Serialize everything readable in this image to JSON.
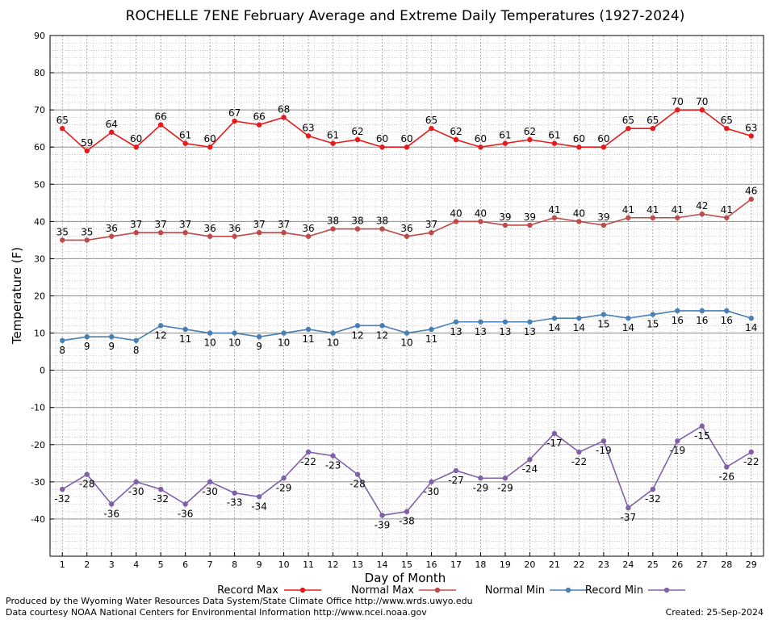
{
  "chart_data": {
    "type": "line",
    "title": "ROCHELLE 7ENE February Average and Extreme Daily Temperatures (1927-2024)",
    "xlabel": "Day of Month",
    "ylabel": "Temperature (F)",
    "ylim": [
      -50,
      90
    ],
    "yticks": [
      90,
      80,
      70,
      60,
      50,
      40,
      30,
      20,
      10,
      0,
      -10,
      -20,
      -30,
      -40
    ],
    "xlim": [
      0.5,
      29.5
    ],
    "categories": [
      1,
      2,
      3,
      4,
      5,
      6,
      7,
      8,
      9,
      10,
      11,
      12,
      13,
      14,
      15,
      16,
      17,
      18,
      19,
      20,
      21,
      22,
      23,
      24,
      25,
      26,
      27,
      28,
      29
    ],
    "grid": true,
    "legend_position": "bottom",
    "series": [
      {
        "name": "Record Max",
        "color": "#e8191b",
        "label_position": "above",
        "values": [
          65,
          59,
          64,
          60,
          66,
          61,
          60,
          67,
          66,
          68,
          63,
          61,
          62,
          60,
          60,
          65,
          62,
          60,
          61,
          62,
          61,
          60,
          60,
          65,
          65,
          70,
          70,
          65,
          63
        ]
      },
      {
        "name": "Normal Max",
        "color": "#c04a4a",
        "label_position": "above",
        "values": [
          35,
          35,
          36,
          37,
          37,
          37,
          36,
          36,
          37,
          37,
          36,
          38,
          38,
          38,
          36,
          37,
          40,
          40,
          39,
          39,
          41,
          40,
          39,
          41,
          41,
          41,
          42,
          41,
          46
        ]
      },
      {
        "name": "Normal Min",
        "color": "#4a7fb5",
        "label_position": "below",
        "values": [
          8,
          9,
          9,
          8,
          12,
          11,
          10,
          10,
          9,
          10,
          11,
          10,
          12,
          12,
          10,
          11,
          13,
          13,
          13,
          13,
          14,
          14,
          15,
          14,
          15,
          16,
          16,
          16,
          14
        ]
      },
      {
        "name": "Record Min",
        "color": "#8060a8",
        "label_position": "below",
        "values": [
          -32,
          -28,
          -36,
          -30,
          -32,
          -36,
          -30,
          -33,
          -34,
          -29,
          -22,
          -23,
          -28,
          -39,
          -38,
          -30,
          -27,
          -29,
          -29,
          -24,
          -17,
          -22,
          -19,
          -37,
          -32,
          -19,
          -15,
          -26,
          -22
        ]
      }
    ]
  },
  "footer": {
    "producer": "Produced by the Wyoming Water Resources Data System/State Climate Office http://www.wrds.uwyo.edu",
    "courtesy": "Data courtesy NOAA National Centers for Environmental Information http://www.ncei.noaa.gov",
    "created": "Created:  25-Sep-2024"
  }
}
